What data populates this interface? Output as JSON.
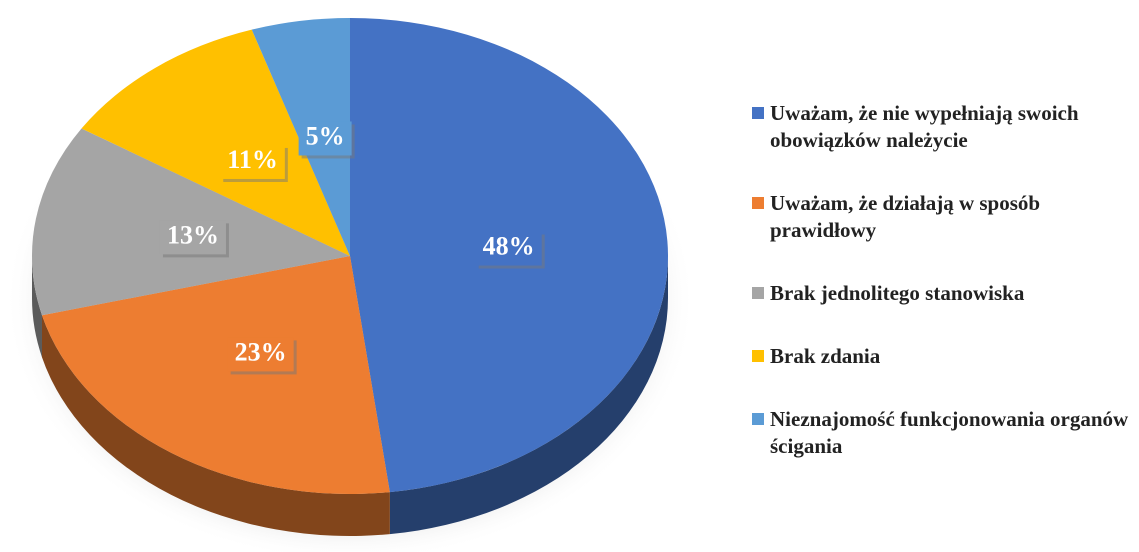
{
  "chart_data": {
    "type": "pie",
    "categories": [
      "Uważam, że nie wypełniają swoich obowiązków należycie",
      "Uważam, że działają w sposób prawidłowy",
      "Brak jednolitego stanowiska",
      "Brak zdania",
      "Nieznajomość funkcjonowania organów ścigania"
    ],
    "values": [
      48,
      23,
      13,
      11,
      5
    ],
    "value_labels": [
      "48%",
      "23%",
      "13%",
      "11%",
      "5%"
    ],
    "colors": [
      "#4472c4",
      "#ed7d31",
      "#a5a5a5",
      "#ffc000",
      "#5b9bd5"
    ],
    "legend": "right"
  }
}
